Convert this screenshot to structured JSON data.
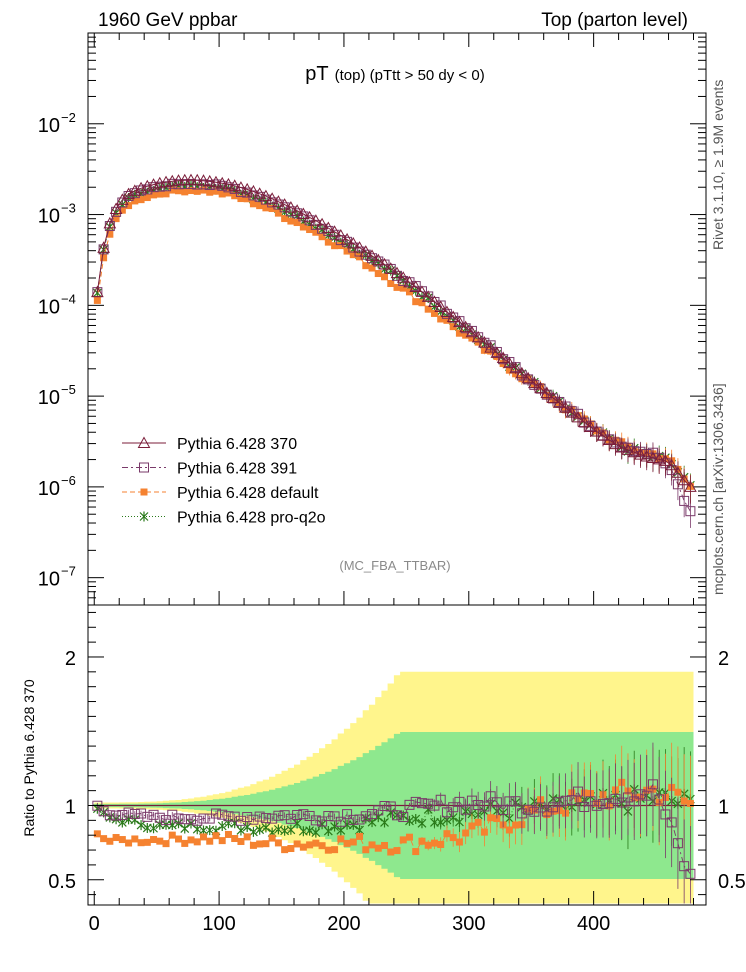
{
  "header": {
    "left": "1960 GeV ppbar",
    "right": "Top (parton level)",
    "title_main": "pT",
    "title_sub": "(top) (pTtt > 50 dy < 0)",
    "tag": "(MC_FBA_TTBAR)",
    "side_top": "Rivet 3.1.10, ≥ 1.9M events",
    "side_bottom": "mcplots.cern.ch [arXiv:1306.3436]"
  },
  "ratio_ylabel": "Ratio to Pythia 6.428 370",
  "colors": {
    "s370": "#7b1e3a",
    "s391": "#7a3a6a",
    "default": "#f58230",
    "proq2o": "#2a7a1a",
    "band_yellow": "#fff58c",
    "band_green": "#8ee88e"
  },
  "chart_data": {
    "type": "scatter",
    "x_range": [
      -5,
      490
    ],
    "x_ticks": [
      0,
      100,
      200,
      300,
      400
    ],
    "main": {
      "yscale": "log",
      "y_range": [
        5e-08,
        0.1
      ],
      "y_tick_labels": [
        {
          "v": 1e-07,
          "base": "10",
          "exp": "−7"
        },
        {
          "v": 1e-06,
          "base": "10",
          "exp": "−6"
        },
        {
          "v": 1e-05,
          "base": "10",
          "exp": "−5"
        },
        {
          "v": 0.0001,
          "base": "10",
          "exp": "−4"
        },
        {
          "v": 0.001,
          "base": "10",
          "exp": "−3"
        },
        {
          "v": 0.01,
          "base": "10",
          "exp": "−2"
        }
      ],
      "ref_points": [
        [
          2.5,
          0.00014
        ],
        [
          7.5,
          0.00043
        ],
        [
          12.5,
          0.0008
        ],
        [
          17.5,
          0.00115
        ],
        [
          22.5,
          0.00145
        ],
        [
          27.5,
          0.00168
        ],
        [
          35,
          0.0019
        ],
        [
          45,
          0.0021
        ],
        [
          55,
          0.00225
        ],
        [
          65,
          0.00235
        ],
        [
          75,
          0.0024
        ],
        [
          85,
          0.00238
        ],
        [
          95,
          0.0023
        ],
        [
          110,
          0.00212
        ],
        [
          125,
          0.00185
        ],
        [
          140,
          0.00155
        ],
        [
          160,
          0.00115
        ],
        [
          180,
          0.00082
        ],
        [
          200,
          0.00056
        ],
        [
          220,
          0.00037
        ],
        [
          240,
          0.00024
        ],
        [
          260,
          0.00015
        ],
        [
          280,
          9e-05
        ],
        [
          300,
          5.4e-05
        ],
        [
          320,
          3.2e-05
        ],
        [
          340,
          1.9e-05
        ],
        [
          360,
          1.15e-05
        ],
        [
          380,
          7e-06
        ],
        [
          400,
          4.3e-06
        ],
        [
          420,
          2.8e-06
        ],
        [
          440,
          2.2e-06
        ],
        [
          460,
          1.9e-06
        ],
        [
          477,
          1e-06
        ]
      ]
    },
    "ratio": {
      "y_range": [
        0.33,
        2.35
      ],
      "y_ticks": [
        0.5,
        1,
        2
      ],
      "y_tick_labels": [
        "0.5",
        "1",
        "2"
      ]
    },
    "series": [
      {
        "name": "Pythia 6.428 370",
        "key": "s370",
        "marker": "triangle",
        "dash": "",
        "ratio_shape": [
          [
            0,
            1.0
          ],
          [
            480,
            1.0
          ]
        ],
        "noise": 0.0,
        "main_scale": 1.0
      },
      {
        "name": "Pythia 6.428 391",
        "key": "s391",
        "marker": "square-open",
        "dash": "6,3,2,3",
        "ratio_shape": [
          [
            0,
            1.01
          ],
          [
            10,
            0.95
          ],
          [
            50,
            0.92
          ],
          [
            100,
            0.92
          ],
          [
            150,
            0.93
          ],
          [
            200,
            0.93
          ],
          [
            250,
            0.97
          ],
          [
            300,
            1.02
          ],
          [
            350,
            1.0
          ],
          [
            400,
            1.05
          ],
          [
            450,
            1.1
          ],
          [
            480,
            0.45
          ]
        ],
        "noise": 0.03,
        "main_scale": 0.95
      },
      {
        "name": "Pythia 6.428 default",
        "key": "default",
        "marker": "square-filled",
        "dash": "5,3",
        "ratio_shape": [
          [
            0,
            0.85
          ],
          [
            10,
            0.76
          ],
          [
            50,
            0.77
          ],
          [
            100,
            0.78
          ],
          [
            150,
            0.74
          ],
          [
            200,
            0.75
          ],
          [
            250,
            0.74
          ],
          [
            300,
            0.8
          ],
          [
            350,
            0.95
          ],
          [
            400,
            1.05
          ],
          [
            450,
            1.1
          ],
          [
            480,
            1.0
          ]
        ],
        "noise": 0.04,
        "main_scale": 0.78
      },
      {
        "name": "Pythia 6.428 pro-q2o",
        "key": "proq2o",
        "marker": "star",
        "dash": "1,2",
        "ratio_shape": [
          [
            0,
            1.0
          ],
          [
            10,
            0.92
          ],
          [
            50,
            0.86
          ],
          [
            100,
            0.86
          ],
          [
            150,
            0.85
          ],
          [
            200,
            0.87
          ],
          [
            250,
            0.92
          ],
          [
            300,
            0.95
          ],
          [
            350,
            0.97
          ],
          [
            400,
            1.0
          ],
          [
            450,
            1.05
          ],
          [
            480,
            1.0
          ]
        ],
        "noise": 0.035,
        "main_scale": 0.88
      }
    ]
  }
}
